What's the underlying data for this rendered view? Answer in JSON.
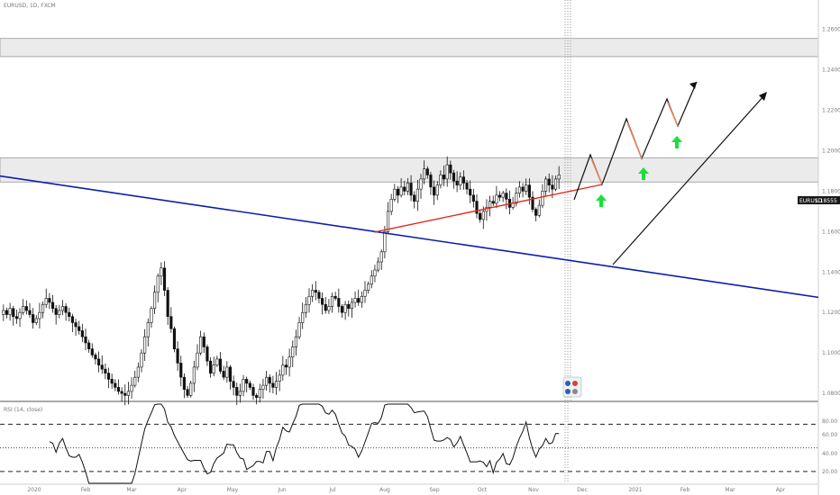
{
  "symbol_label": "EURUSD, 1D, FXCM",
  "rsi_label": "RSI (14, close)",
  "price_marker": {
    "symbol": "EURUSD",
    "price": "1.18555"
  },
  "colors": {
    "candle": "#111111",
    "zone_fill": "#ebebeb",
    "zone_border": "#9a9a9a",
    "support_line": "#0a1fa8",
    "trend_line": "#e02a1c",
    "projection": "#111111",
    "projection_leg": "#e8825a",
    "arrow_up": "#19e03a",
    "marker_bg": "#1a1a1a"
  },
  "chart_data": {
    "type": "candlestick",
    "y_axis_labels": [
      "1.2600",
      "1.2400",
      "1.2200",
      "1.2000",
      "1.1800",
      "1.1600",
      "1.1400",
      "1.1200",
      "1.1000",
      "1.0800"
    ],
    "x_axis_labels": [
      "2020",
      "Feb",
      "Mar",
      "Apr",
      "May",
      "Jun",
      "Jul",
      "Aug",
      "Sep",
      "Oct",
      "Nov",
      "Dec",
      "2021",
      "Feb",
      "Mar",
      "Apr"
    ],
    "ylim": [
      1.0765,
      1.2745
    ],
    "close_series": [
      1.121,
      1.119,
      1.122,
      1.118,
      1.117,
      1.12,
      1.123,
      1.121,
      1.119,
      1.115,
      1.117,
      1.12,
      1.124,
      1.127,
      1.125,
      1.122,
      1.119,
      1.121,
      1.123,
      1.12,
      1.118,
      1.115,
      1.113,
      1.111,
      1.108,
      1.105,
      1.102,
      1.099,
      1.097,
      1.094,
      1.092,
      1.09,
      1.087,
      1.085,
      1.083,
      1.081,
      1.08,
      1.079,
      1.081,
      1.084,
      1.088,
      1.093,
      1.1,
      1.108,
      1.115,
      1.122,
      1.13,
      1.138,
      1.142,
      1.131,
      1.118,
      1.112,
      1.102,
      1.095,
      1.088,
      1.082,
      1.079,
      1.085,
      1.093,
      1.1,
      1.108,
      1.103,
      1.096,
      1.09,
      1.094,
      1.097,
      1.091,
      1.088,
      1.093,
      1.086,
      1.083,
      1.079,
      1.081,
      1.087,
      1.085,
      1.083,
      1.079,
      1.078,
      1.082,
      1.084,
      1.088,
      1.085,
      1.083,
      1.086,
      1.089,
      1.094,
      1.093,
      1.098,
      1.103,
      1.108,
      1.115,
      1.12,
      1.124,
      1.128,
      1.131,
      1.13,
      1.127,
      1.124,
      1.121,
      1.123,
      1.128,
      1.127,
      1.123,
      1.12,
      1.124,
      1.122,
      1.125,
      1.127,
      1.125,
      1.128,
      1.131,
      1.134,
      1.138,
      1.141,
      1.145,
      1.15,
      1.16,
      1.17,
      1.176,
      1.181,
      1.178,
      1.182,
      1.18,
      1.184,
      1.178,
      1.175,
      1.181,
      1.186,
      1.191,
      1.188,
      1.182,
      1.178,
      1.183,
      1.188,
      1.186,
      1.193,
      1.189,
      1.185,
      1.183,
      1.187,
      1.184,
      1.181,
      1.178,
      1.175,
      1.169,
      1.166,
      1.17,
      1.172,
      1.175,
      1.174,
      1.178,
      1.177,
      1.179,
      1.176,
      1.172,
      1.174,
      1.179,
      1.182,
      1.18,
      1.183,
      1.177,
      1.171,
      1.168,
      1.173,
      1.18,
      1.186,
      1.183,
      1.181,
      1.186,
      1.188
    ],
    "resistance_zone": [
      1.1845,
      1.1965
    ],
    "upper_zone": [
      1.2465,
      1.2555
    ],
    "support_line": {
      "from": 1.1875,
      "to": 1.1275
    },
    "rsi": {
      "overbought": 70,
      "midline": 50,
      "oversold": 30,
      "ylim": [
        20,
        87
      ]
    }
  }
}
